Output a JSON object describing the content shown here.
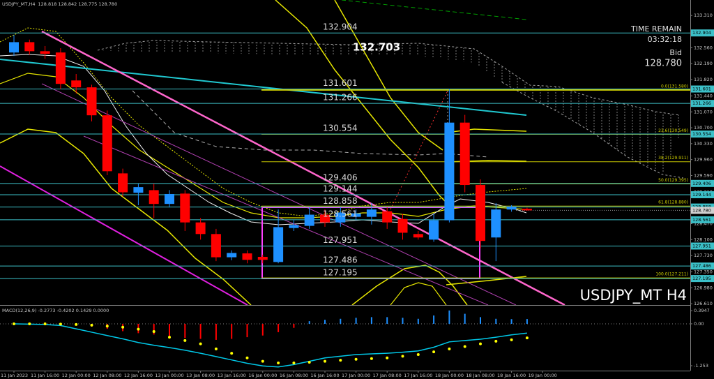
{
  "chart_data": [
    {
      "type": "candlestick",
      "title": "USDJPY_MT,H4",
      "ohlc_text": "128.818 128.842 128.775 128.780",
      "categories": [
        "11 Jan 2023",
        null,
        "11 Jan 16:00",
        null,
        "12 Jan 00:00",
        null,
        "12 Jan 08:00",
        null,
        "12 Jan 16:00",
        null,
        "13 Jan 00:00",
        null,
        "13 Jan 08:00",
        null,
        "13 Jan 16:00",
        null,
        "16 Jan 00:00",
        null,
        "16 Jan 08:00",
        null,
        "16 Jan 16:00",
        null,
        "17 Jan 00:00",
        null,
        "17 Jan 08:00",
        null,
        "17 Jan 16:00",
        null,
        "18 Jan 00:00",
        null,
        "18 Jan 08:00",
        null,
        "18 Jan 16:00",
        null,
        "19 Jan 00:00"
      ],
      "open": [
        132.45,
        132.69,
        132.48,
        132.45,
        131.8,
        131.64,
        130.99,
        129.64,
        129.19,
        129.25,
        128.93,
        129.17,
        128.5,
        128.23,
        127.69,
        127.78,
        127.7,
        127.58,
        128.37,
        128.42,
        128.68,
        128.5,
        128.63,
        128.63,
        128.76,
        128.58,
        128.23,
        128.1,
        128.55,
        130.82,
        129.37,
        128.15,
        128.8,
        128.818,
        null
      ],
      "high": [
        132.86,
        132.75,
        132.6,
        132.55,
        131.95,
        131.7,
        131.1,
        129.75,
        129.4,
        129.4,
        129.25,
        129.25,
        128.6,
        128.35,
        127.85,
        127.85,
        127.75,
        128.8,
        128.55,
        128.85,
        128.8,
        128.85,
        128.8,
        128.95,
        128.85,
        128.7,
        128.3,
        128.7,
        131.6,
        131.0,
        129.5,
        128.95,
        128.9,
        128.842,
        null
      ],
      "low": [
        132.37,
        132.4,
        132.3,
        131.6,
        131.5,
        130.85,
        129.6,
        129.1,
        128.9,
        128.6,
        128.85,
        128.3,
        128.1,
        127.6,
        127.62,
        127.55,
        127.55,
        127.55,
        128.3,
        128.35,
        128.4,
        128.4,
        128.55,
        128.45,
        128.35,
        128.1,
        128.1,
        128.05,
        128.5,
        129.2,
        127.9,
        127.6,
        128.75,
        128.775,
        null
      ],
      "close": [
        132.69,
        132.48,
        132.42,
        131.72,
        131.64,
        130.99,
        129.69,
        129.2,
        129.32,
        128.93,
        129.16,
        128.5,
        128.23,
        127.69,
        127.79,
        127.63,
        127.63,
        128.39,
        128.44,
        128.68,
        128.5,
        128.73,
        128.71,
        128.8,
        128.5,
        128.26,
        128.15,
        128.55,
        130.82,
        129.37,
        128.07,
        128.8,
        128.87,
        128.78,
        null
      ],
      "up_color": "#1e90ff",
      "down_color": "#ff0000",
      "ylim": [
        126.58,
        133.67
      ],
      "yticks": [
        {
          "value": 133.31,
          "label": "133.310"
        },
        {
          "value": 132.56,
          "label": "132.560"
        },
        {
          "value": 132.19,
          "label": "132.190"
        },
        {
          "value": 131.82,
          "label": "131.820"
        },
        {
          "value": 131.44,
          "label": "131.440"
        },
        {
          "value": 131.07,
          "label": "131.070"
        },
        {
          "value": 130.7,
          "label": "130.700"
        },
        {
          "value": 130.33,
          "label": "130.330"
        },
        {
          "value": 129.96,
          "label": "129.960"
        },
        {
          "value": 129.59,
          "label": "129.590"
        },
        {
          "value": 129.21,
          "label": "129.210"
        },
        {
          "value": 128.47,
          "label": "128.470"
        },
        {
          "value": 128.1,
          "label": "128.100"
        },
        {
          "value": 127.73,
          "label": "127.730"
        },
        {
          "value": 127.35,
          "label": "127.350"
        },
        {
          "value": 126.98,
          "label": "126.980"
        },
        {
          "value": 126.61,
          "label": "126.610"
        }
      ],
      "levels": [
        132.904,
        131.601,
        131.266,
        130.554,
        129.406,
        129.144,
        128.858,
        128.561,
        127.951,
        127.486,
        127.195
      ],
      "level_color": "#3cc0c8",
      "fib_levels": [
        {
          "value": 131.58,
          "label": "0.0(131.580)"
        },
        {
          "value": 130.549,
          "label": "23.6(130.549)"
        },
        {
          "value": 129.911,
          "label": "38.2(129.911)"
        },
        {
          "value": 129.395,
          "label": "50.0(129.395)"
        },
        {
          "value": 128.88,
          "label": "61.8(128.880)"
        },
        {
          "value": 127.211,
          "label": "100.0(127.211)"
        }
      ],
      "fib_color": "#c8c800",
      "peak_label": "132.703",
      "symbol_label": "USDJPY_MT H4",
      "info": {
        "time_label": "TIME REMAIN",
        "time": "03:32:18",
        "bid_label": "Bid",
        "bid": "128.780"
      }
    },
    {
      "type": "macd",
      "title": "MACD(12,26,9) -0.2773 -0.4202 0.1429 0.0000",
      "ylim": [
        -1.4,
        0.5
      ],
      "yticks": [
        0.3947,
        {
          "value": 0,
          "label": "0.00"
        },
        -1.253
      ],
      "histogram": [
        0.02,
        0.03,
        0.02,
        0.0,
        -0.03,
        -0.08,
        -0.15,
        -0.22,
        -0.28,
        -0.32,
        -0.36,
        -0.42,
        -0.45,
        -0.48,
        -0.45,
        -0.4,
        -0.35,
        -0.25,
        -0.12,
        0.08,
        0.12,
        0.15,
        0.18,
        0.2,
        0.2,
        0.18,
        0.15,
        0.25,
        0.4,
        0.3,
        0.2,
        0.15,
        0.14,
        0.1429,
        null
      ],
      "main": [
        0,
        -0.01,
        -0.02,
        -0.05,
        -0.15,
        -0.25,
        -0.35,
        -0.45,
        -0.56,
        -0.64,
        -0.71,
        -0.79,
        -0.88,
        -0.98,
        -1.08,
        -1.18,
        -1.26,
        -1.29,
        -1.22,
        -1.12,
        -1.02,
        -0.97,
        -0.92,
        -0.9,
        -0.88,
        -0.85,
        -0.81,
        -0.7,
        -0.54,
        -0.5,
        -0.46,
        -0.4,
        -0.33,
        -0.2773,
        null
      ],
      "signal": [
        0,
        0,
        0,
        -0.01,
        -0.02,
        -0.04,
        -0.07,
        -0.1,
        -0.16,
        -0.23,
        -0.4,
        -0.5,
        -0.6,
        -0.75,
        -0.88,
        -1.02,
        -1.12,
        -1.17,
        -1.17,
        -1.15,
        -1.12,
        -1.09,
        -1.06,
        -1.04,
        -1.02,
        -0.97,
        -0.92,
        -0.84,
        -0.75,
        -0.68,
        -0.6,
        -0.52,
        -0.48,
        -0.4202,
        null
      ],
      "histogram_colors": [
        "#1e90ff",
        "#ff0000"
      ],
      "main_color": "#00c8e8",
      "signal_color": "#ffff00"
    }
  ]
}
